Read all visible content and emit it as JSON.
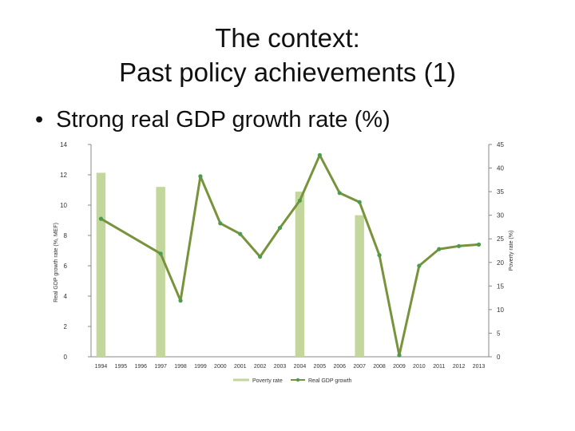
{
  "slide": {
    "title_line1": "The context:",
    "title_line2": "Past policy achievements (1)",
    "bullet_symbol": "•",
    "bullet_text": "Strong real GDP growth rate (%)"
  },
  "chart_data": {
    "type": "bar+line",
    "categories": [
      "1994",
      "1995",
      "1996",
      "1997",
      "1998",
      "1999",
      "2000",
      "2001",
      "2002",
      "2003",
      "2004",
      "2005",
      "2006",
      "2007",
      "2008",
      "2009",
      "2010",
      "2011",
      "2012",
      "2013"
    ],
    "left_axis": {
      "label": "Real GDP growth rate (%, MEF)",
      "ticks": [
        0,
        2,
        4,
        6,
        8,
        10,
        12,
        14
      ],
      "ylim": [
        0,
        14
      ]
    },
    "right_axis": {
      "label": "Poverty rate (%)",
      "ticks": [
        0,
        5,
        10,
        15,
        20,
        25,
        30,
        35,
        40,
        45
      ],
      "ylim": [
        0,
        45
      ]
    },
    "series": [
      {
        "name": "Poverty rate",
        "type": "bar",
        "axis": "right",
        "color": "#c3d69b",
        "values": [
          39,
          null,
          null,
          36,
          null,
          null,
          null,
          null,
          null,
          null,
          35,
          null,
          null,
          30,
          null,
          null,
          null,
          null,
          null,
          null
        ]
      },
      {
        "name": "Real GDP growth",
        "type": "line",
        "axis": "left",
        "color": "#77933c",
        "marker_color": "#4e9a4e",
        "values": [
          9.1,
          null,
          null,
          6.8,
          3.7,
          11.9,
          8.8,
          8.1,
          6.6,
          8.5,
          10.3,
          13.3,
          10.8,
          10.2,
          6.7,
          0.1,
          6.0,
          7.1,
          7.3,
          7.4
        ]
      }
    ],
    "legend": [
      "Poverty rate",
      "Real GDP growth"
    ],
    "legend_position": "bottom"
  }
}
